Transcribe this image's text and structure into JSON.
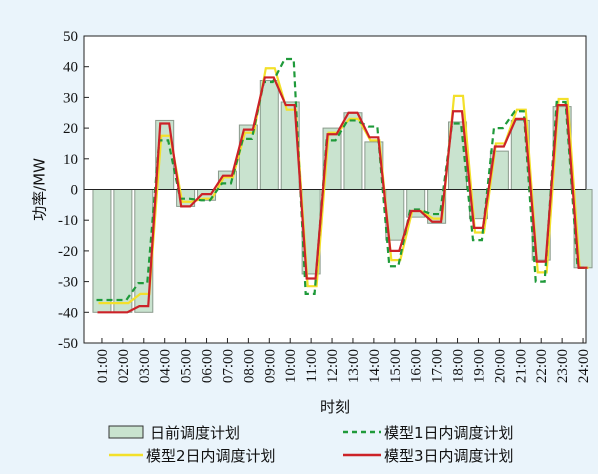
{
  "chart_data": {
    "type": "bar",
    "xlabel": "时刻",
    "ylabel": "功率/MW",
    "ylim": [
      -50,
      50
    ],
    "yticks": [
      -50,
      -40,
      -30,
      -20,
      -10,
      0,
      10,
      20,
      30,
      40,
      50
    ],
    "categories": [
      "01:00",
      "02:00",
      "03:00",
      "04:00",
      "05:00",
      "06:00",
      "07:00",
      "08:00",
      "09:00",
      "10:00",
      "11:00",
      "12:00",
      "13:00",
      "14:00",
      "15:00",
      "16:00",
      "17:00",
      "18:00",
      "19:00",
      "20:00",
      "21:00",
      "22:00",
      "23:00",
      "24:00"
    ],
    "legend_position": "bottom",
    "colors": {
      "day_ahead_fill": "#c9e3cf",
      "day_ahead_stroke": "#8a9a8c",
      "model1": "#1f9a3a",
      "model2": "#f3e02a",
      "model3": "#cc2228"
    },
    "series": [
      {
        "name": "日前调度计划",
        "kind": "bar",
        "values": [
          -40,
          -40,
          -40,
          22.5,
          -5.5,
          -3.5,
          6,
          21,
          35.5,
          28.5,
          -27.5,
          20,
          25,
          15.5,
          -16.5,
          -9,
          -11,
          22,
          -9.5,
          12.5,
          22.5,
          -23,
          27,
          -25.5
        ]
      },
      {
        "name": "模型1日内调度计划",
        "kind": "step",
        "values": [
          -36,
          -36,
          -30.5,
          16,
          -3,
          -3.5,
          2,
          16.5,
          35,
          42.5,
          -34,
          16,
          22.5,
          20.5,
          -25,
          -6.5,
          -8,
          21.5,
          -16.5,
          20,
          25.5,
          -30,
          28.5,
          -25.5
        ]
      },
      {
        "name": "模型2日内调度计划",
        "kind": "step",
        "values": [
          -37,
          -37,
          -34,
          17.5,
          -4,
          -3,
          4,
          18.5,
          39.5,
          26,
          -31.5,
          18.5,
          23,
          16,
          -23,
          -7,
          -9.5,
          30.5,
          -14,
          15,
          26,
          -27,
          29.5,
          -25.5
        ]
      },
      {
        "name": "模型3日内调度计划",
        "kind": "step",
        "values": [
          -40,
          -40,
          -38,
          21.5,
          -5.5,
          -1.5,
          4.5,
          19.5,
          36.5,
          27.5,
          -29,
          18,
          25,
          17,
          -20,
          -7,
          -10.5,
          25.5,
          -12.5,
          14,
          23,
          -23.5,
          27.5,
          -25.5
        ]
      }
    ]
  }
}
